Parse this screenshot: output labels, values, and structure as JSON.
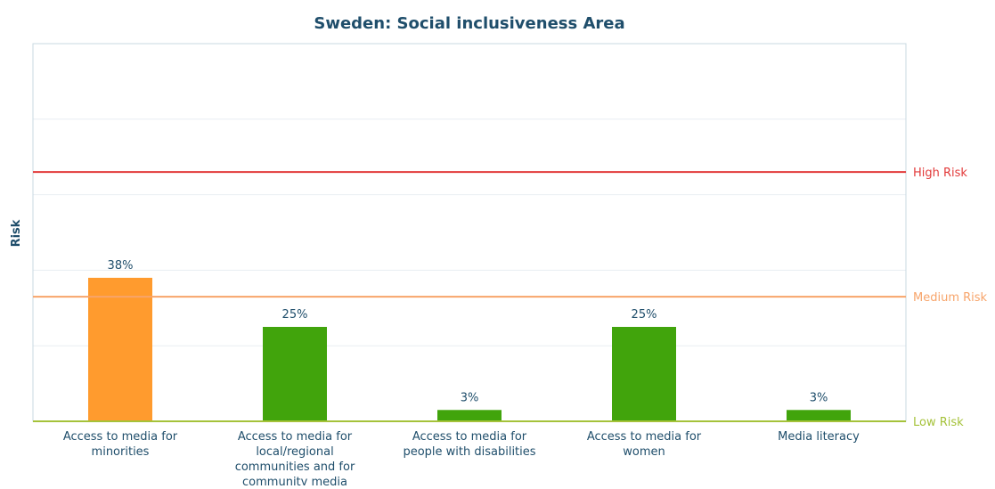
{
  "chart_data": {
    "type": "bar",
    "title": "Sweden: Social inclusiveness Area",
    "xlabel": "",
    "ylabel": "Risk",
    "categories": [
      [
        "Access to media for",
        "minorities"
      ],
      [
        "Access to media for",
        "local/regional",
        "communities and for",
        "community media"
      ],
      [
        "Access to media for",
        "people with disabilities"
      ],
      [
        "Access to media for",
        "women"
      ],
      [
        "Media literacy"
      ]
    ],
    "values": [
      38,
      25,
      3,
      25,
      3
    ],
    "value_labels": [
      "38%",
      "25%",
      "3%",
      "25%",
      "3%"
    ],
    "bar_colors": [
      "#ff9b2e",
      "#41a40c",
      "#41a40c",
      "#41a40c",
      "#41a40c"
    ],
    "ylim": [
      0,
      100
    ],
    "grid": true,
    "thresholds": [
      {
        "label": "High Risk",
        "value": 66,
        "color": "#e23a3a"
      },
      {
        "label": "Medium Risk",
        "value": 33,
        "color": "#f7a46a"
      },
      {
        "label": "Low Risk",
        "value": 0,
        "color": "#a5c23a"
      }
    ]
  }
}
